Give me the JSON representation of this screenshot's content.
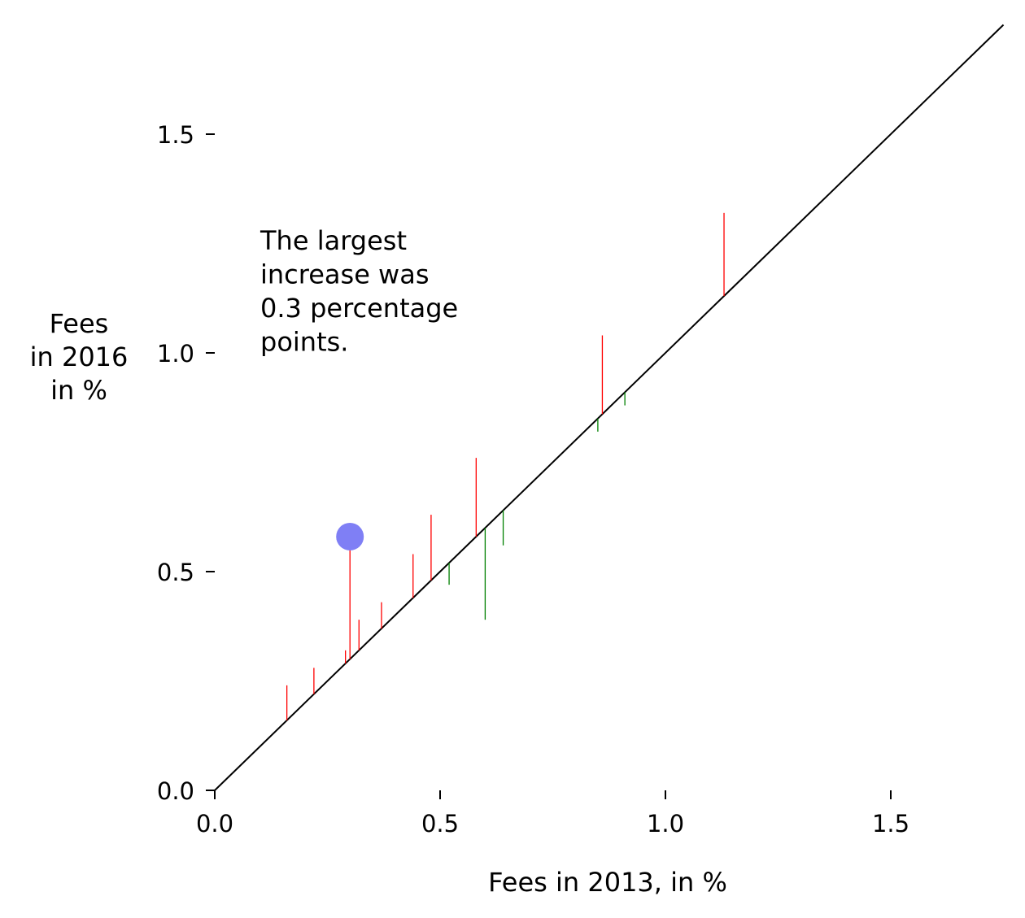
{
  "chart_data": {
    "type": "scatter",
    "title": "",
    "xlabel": "Fees in 2013, in %",
    "ylabel_lines": [
      "Fees",
      "in 2016",
      "in %"
    ],
    "xlim": [
      0.0,
      1.75
    ],
    "ylim": [
      0.0,
      1.75
    ],
    "xticks": [
      "0.0",
      "0.5",
      "1.0",
      "1.5"
    ],
    "yticks": [
      "0.0",
      "0.5",
      "1.0",
      "1.5"
    ],
    "grid": false,
    "reference_line": "y = x",
    "segments": [
      {
        "x2013": 0.16,
        "y2016": 0.24
      },
      {
        "x2013": 0.22,
        "y2016": 0.28
      },
      {
        "x2013": 0.29,
        "y2016": 0.32
      },
      {
        "x2013": 0.3,
        "y2016": 0.58
      },
      {
        "x2013": 0.32,
        "y2016": 0.39
      },
      {
        "x2013": 0.37,
        "y2016": 0.43
      },
      {
        "x2013": 0.44,
        "y2016": 0.54
      },
      {
        "x2013": 0.48,
        "y2016": 0.63
      },
      {
        "x2013": 0.52,
        "y2016": 0.47
      },
      {
        "x2013": 0.58,
        "y2016": 0.76
      },
      {
        "x2013": 0.6,
        "y2016": 0.39
      },
      {
        "x2013": 0.64,
        "y2016": 0.56
      },
      {
        "x2013": 0.85,
        "y2016": 0.82
      },
      {
        "x2013": 0.86,
        "y2016": 1.04
      },
      {
        "x2013": 0.91,
        "y2016": 0.88
      },
      {
        "x2013": 1.13,
        "y2016": 1.32
      }
    ],
    "highlight_point": {
      "x2013": 0.3,
      "y2016": 0.58
    },
    "annotation_lines": [
      "The largest",
      "increase was",
      "0.3 percentage",
      "points."
    ],
    "colors": {
      "increase": "#ff0000",
      "decrease": "#008000",
      "diagonal": "#000000",
      "highlight": "#7f7ff5"
    }
  }
}
